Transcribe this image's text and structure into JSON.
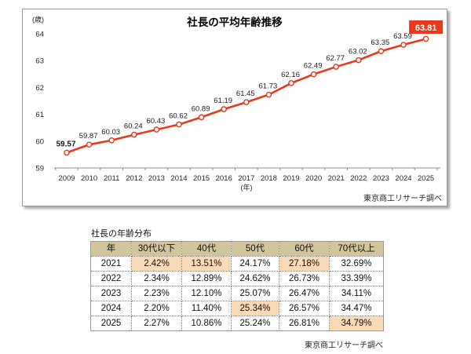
{
  "sources": {
    "chart": "東京商工リサーチ調べ",
    "table": "東京商工リサーチ調べ"
  },
  "chart_data": [
    {
      "type": "line",
      "title": "社長の平均年齢推移",
      "ylabel": "(歳)",
      "xlabel": "(年)",
      "x": [
        2009,
        2010,
        2011,
        2012,
        2013,
        2014,
        2015,
        2016,
        2017,
        2018,
        2019,
        2020,
        2021,
        2022,
        2023,
        2024,
        2025
      ],
      "values": [
        59.57,
        59.87,
        60.03,
        60.24,
        60.43,
        60.62,
        60.89,
        61.19,
        61.45,
        61.73,
        62.16,
        62.49,
        62.77,
        63.02,
        63.35,
        63.59,
        63.81
      ],
      "ylim": [
        59,
        64
      ],
      "yticks": [
        59,
        60,
        61,
        62,
        63,
        64
      ],
      "line_color": "#e8391c",
      "marker": "open-circle-white",
      "grid": false,
      "legend": "none",
      "first_label_bold": true,
      "highlight_last": true,
      "highlight_last_label": "63.81"
    },
    {
      "type": "table",
      "title": "社長の年齢分布",
      "columns": [
        "年",
        "30代以下",
        "40代",
        "50代",
        "60代",
        "70代以上"
      ],
      "rows": [
        {
          "year": "2021",
          "values": [
            "2.42%",
            "13.51%",
            "24.17%",
            "27.18%",
            "32.69%"
          ],
          "highlight": [
            0,
            1,
            3
          ]
        },
        {
          "year": "2022",
          "values": [
            "2.34%",
            "12.89%",
            "24.62%",
            "26.73%",
            "33.39%"
          ],
          "highlight": []
        },
        {
          "year": "2023",
          "values": [
            "2.23%",
            "12.10%",
            "25.07%",
            "26.47%",
            "34.11%"
          ],
          "highlight": []
        },
        {
          "year": "2024",
          "values": [
            "2.20%",
            "11.40%",
            "25.34%",
            "26.57%",
            "34.47%"
          ],
          "highlight": [
            2
          ]
        },
        {
          "year": "2025",
          "values": [
            "2.27%",
            "10.86%",
            "25.24%",
            "26.81%",
            "34.79%"
          ],
          "highlight": [
            4
          ]
        }
      ],
      "colors": {
        "header_bg": "#d2c59c",
        "highlight_bg": "#fbd9b4",
        "border": "#808080"
      }
    }
  ]
}
